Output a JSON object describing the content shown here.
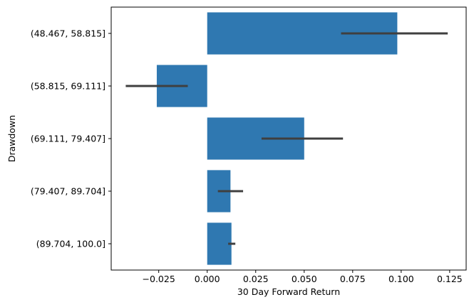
{
  "chart_data": {
    "type": "bar",
    "orientation": "horizontal",
    "title": "",
    "xlabel": "30 Day Forward Return",
    "ylabel": "Drawdown",
    "categories": [
      "(48.467, 58.815]",
      "(58.815, 69.111]",
      "(69.111, 79.407]",
      "(79.407, 89.704]",
      "(89.704, 100.0]"
    ],
    "values": [
      0.098,
      -0.026,
      0.05,
      0.012,
      0.0125
    ],
    "error_low": [
      0.069,
      -0.042,
      0.028,
      0.0055,
      0.0108
    ],
    "error_high": [
      0.124,
      -0.01,
      0.07,
      0.0185,
      0.0145
    ],
    "xlim": [
      -0.0495,
      0.1335
    ],
    "xticks": [
      -0.025,
      0.0,
      0.025,
      0.05,
      0.075,
      0.1,
      0.125
    ],
    "xtick_labels": [
      "−0.025",
      "0.000",
      "0.025",
      "0.050",
      "0.075",
      "0.100",
      "0.125"
    ],
    "grid": false,
    "bar_color": "#2f78b1",
    "error_color": "#3f3f3f"
  }
}
